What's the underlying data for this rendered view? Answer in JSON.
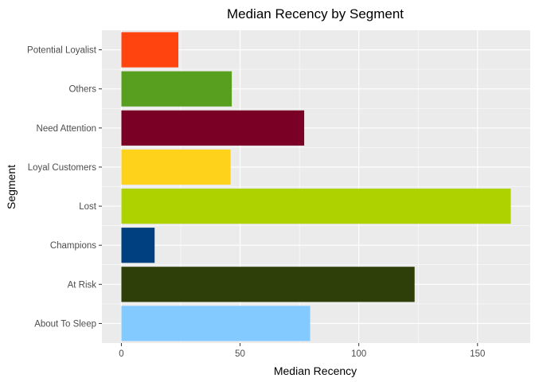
{
  "chart_data": {
    "type": "bar",
    "orientation": "horizontal",
    "title": "Median Recency by Segment",
    "xlabel": "Median Recency",
    "ylabel": "Segment",
    "categories": [
      "About To Sleep",
      "At Risk",
      "Champions",
      "Lost",
      "Loyal Customers",
      "Need Attention",
      "Others",
      "Potential Loyalist"
    ],
    "values": [
      79.5,
      123.5,
      14,
      164,
      46,
      77,
      46.5,
      24
    ],
    "colors": [
      "#82CAFF",
      "#2F3F09",
      "#004080",
      "#AED100",
      "#FED21A",
      "#7A0026",
      "#589E1F",
      "#FF4410"
    ],
    "xlim": [
      -8.2,
      172.2
    ],
    "x_ticks": [
      "0",
      "50",
      "100",
      "150"
    ],
    "x_tick_values": [
      0,
      50,
      100,
      150
    ],
    "grid": true,
    "panel_background": "#EBEBEB",
    "grid_color": "#FFFFFF",
    "legend": "none"
  }
}
